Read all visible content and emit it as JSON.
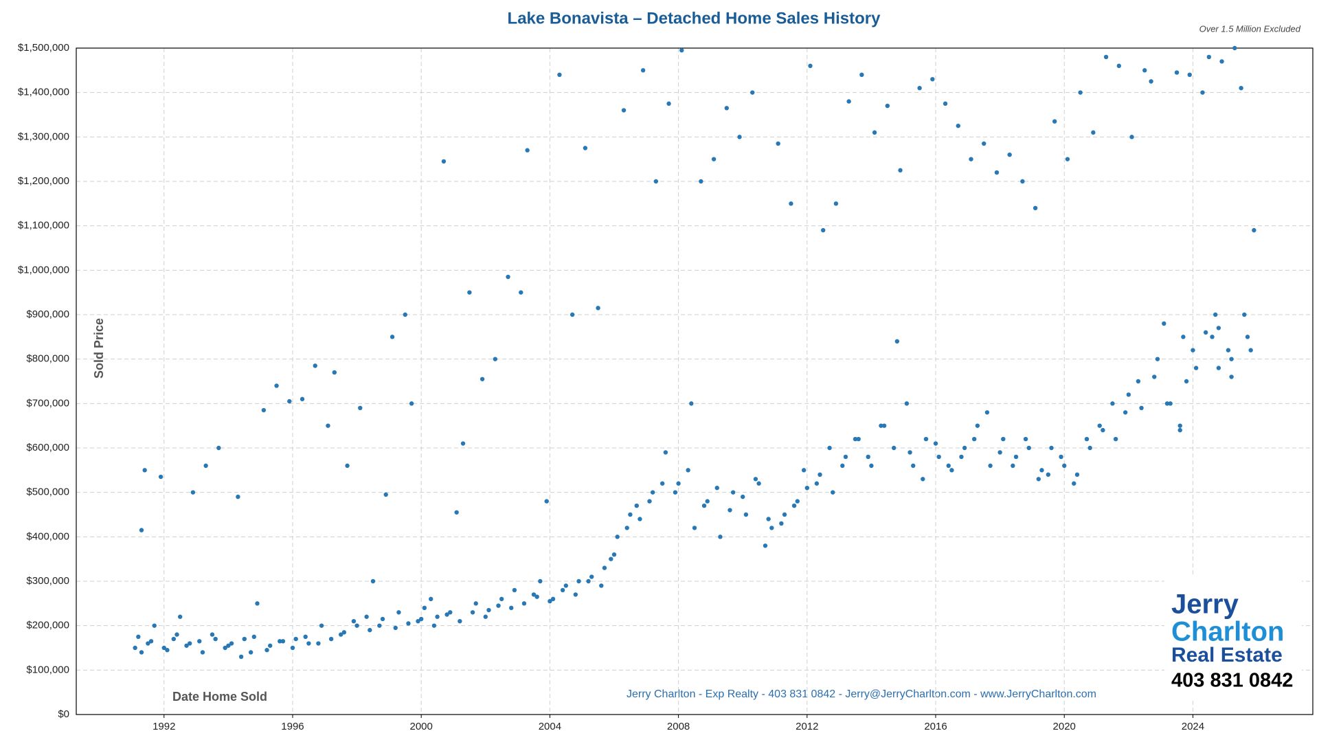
{
  "chart_data": {
    "type": "scatter",
    "title": "Lake Bonavista – Detached Home Sales History",
    "note": "Over 1.5 Million Excluded",
    "y_label": "Sold Price",
    "x_label": "Date Home Sold",
    "footer": "Jerry Charlton - Exp Realty - 403 831 0842 - Jerry@JerryCharlton.com - www.JerryCharlton.com",
    "logo": {
      "line1": "Jerry",
      "line2": "Charlton",
      "line3": "Real Estate",
      "phone": "403 831 0842"
    },
    "color": "#2878b5",
    "grid": true,
    "xlim": [
      1989.27,
      2027.73
    ],
    "xticks": [
      1992,
      1996,
      2000,
      2004,
      2008,
      2012,
      2016,
      2020,
      2024
    ],
    "ylim": [
      0,
      1500000
    ],
    "yticks": [
      {
        "value": 0,
        "label": "$0"
      },
      {
        "value": 100000,
        "label": "$100,000"
      },
      {
        "value": 200000,
        "label": "$200,000"
      },
      {
        "value": 300000,
        "label": "$300,000"
      },
      {
        "value": 400000,
        "label": "$400,000"
      },
      {
        "value": 500000,
        "label": "$500,000"
      },
      {
        "value": 600000,
        "label": "$600,000"
      },
      {
        "value": 700000,
        "label": "$700,000"
      },
      {
        "value": 800000,
        "label": "$800,000"
      },
      {
        "value": 900000,
        "label": "$900,000"
      },
      {
        "value": 1000000,
        "label": "$1,000,000"
      },
      {
        "value": 1100000,
        "label": "$1,100,000"
      },
      {
        "value": 1200000,
        "label": "$1,200,000"
      },
      {
        "value": 1300000,
        "label": "$1,300,000"
      },
      {
        "value": 1400000,
        "label": "$1,400,000"
      },
      {
        "value": 1500000,
        "label": "$1,500,000"
      }
    ],
    "x": [
      1991.1,
      1991.2,
      1991.3,
      1991.4,
      1991.5,
      1991.7,
      1991.9,
      1992.1,
      1992.3,
      1992.5,
      1992.7,
      1992.9,
      1993.1,
      1993.3,
      1993.5,
      1993.7,
      1993.9,
      1994.1,
      1994.3,
      1994.5,
      1994.7,
      1994.9,
      1995.1,
      1995.3,
      1995.5,
      1995.7,
      1995.9,
      1996.1,
      1996.3,
      1996.5,
      1996.7,
      1996.9,
      1997.1,
      1997.3,
      1997.5,
      1997.7,
      1997.9,
      1998.1,
      1998.3,
      1998.5,
      1998.7,
      1998.9,
      1999.1,
      1999.3,
      1999.5,
      1999.7,
      1999.9,
      2000.1,
      2000.3,
      2000.5,
      2000.7,
      2000.9,
      2001.1,
      2001.3,
      2001.5,
      2001.7,
      2001.9,
      2002.1,
      2002.3,
      2002.5,
      2002.7,
      2002.9,
      2003.1,
      2003.3,
      2003.5,
      2003.7,
      2003.9,
      2004.1,
      2004.3,
      2004.5,
      2004.7,
      2004.9,
      2005.1,
      2005.3,
      2005.5,
      2005.7,
      2005.9,
      2006.1,
      2006.3,
      2006.5,
      2006.7,
      2006.9,
      2007.1,
      2007.3,
      2007.5,
      2007.7,
      2007.9,
      2008.1,
      2008.3,
      2008.5,
      2008.7,
      2008.9,
      2009.1,
      2009.3,
      2009.5,
      2009.7,
      2009.9,
      2010.1,
      2010.3,
      2010.5,
      2010.7,
      2010.9,
      2011.1,
      2011.3,
      2011.5,
      2011.7,
      2011.9,
      2012.1,
      2012.3,
      2012.5,
      2012.7,
      2012.9,
      2013.1,
      2013.3,
      2013.5,
      2013.7,
      2013.9,
      2014.1,
      2014.3,
      2014.5,
      2014.7,
      2014.9,
      2015.1,
      2015.3,
      2015.5,
      2015.7,
      2015.9,
      2016.1,
      2016.3,
      2016.5,
      2016.7,
      2016.9,
      2017.1,
      2017.3,
      2017.5,
      2017.7,
      2017.9,
      2018.1,
      2018.3,
      2018.5,
      2018.7,
      2018.9,
      2019.1,
      2019.3,
      2019.5,
      2019.7,
      2019.9,
      2020.1,
      2020.3,
      2020.5,
      2020.7,
      2020.9,
      2021.1,
      2021.3,
      2021.5,
      2021.7,
      2021.9,
      2022.1,
      2022.3,
      2022.5,
      2022.7,
      2022.9,
      2023.1,
      2023.3,
      2023.5,
      2023.7,
      2023.9,
      2024.1,
      2024.3,
      2024.5,
      2024.7,
      2024.9,
      2025.1,
      2025.3,
      2025.5,
      2025.7,
      2025.9,
      2025.2,
      2024.8,
      2023.6,
      1991.3,
      1991.6,
      1992.0,
      1992.4,
      1992.8,
      1993.2,
      1993.6,
      1994.0,
      1994.4,
      1994.8,
      1995.2,
      1995.6,
      1996.0,
      1996.4,
      1996.8,
      1997.2,
      1997.6,
      1998.0,
      1998.4,
      1998.8,
      1999.2,
      1999.6,
      2000.0,
      2000.4,
      2000.8,
      2001.2,
      2001.6,
      2002.0,
      2002.4,
      2002.8,
      2003.2,
      2003.6,
      2004.0,
      2004.4,
      2004.8,
      2005.2,
      2005.6,
      2006.0,
      2006.4,
      2006.8,
      2007.2,
      2007.6,
      2008.0,
      2008.4,
      2008.8,
      2009.2,
      2009.6,
      2010.0,
      2010.4,
      2010.8,
      2011.2,
      2011.6,
      2012.0,
      2012.4,
      2012.8,
      2013.2,
      2013.6,
      2014.0,
      2014.4,
      2014.8,
      2015.2,
      2015.6,
      2016.0,
      2016.4,
      2016.8,
      2017.2,
      2017.6,
      2018.0,
      2018.4,
      2018.8,
      2019.2,
      2019.6,
      2020.0,
      2020.4,
      2020.8,
      2021.2,
      2021.6,
      2022.0,
      2022.4,
      2022.8,
      2023.2,
      2023.6,
      2024.0,
      2024.4,
      2024.8,
      2025.2,
      2025.6,
      2025.8,
      2023.8,
      2024.6
    ],
    "values": [
      150000,
      175000,
      415000,
      550000,
      160000,
      200000,
      535000,
      145000,
      170000,
      220000,
      155000,
      500000,
      165000,
      560000,
      180000,
      600000,
      150000,
      160000,
      490000,
      170000,
      140000,
      250000,
      685000,
      155000,
      740000,
      165000,
      705000,
      170000,
      710000,
      160000,
      785000,
      200000,
      650000,
      770000,
      180000,
      560000,
      210000,
      690000,
      220000,
      300000,
      200000,
      495000,
      850000,
      230000,
      900000,
      700000,
      210000,
      240000,
      260000,
      220000,
      1245000,
      230000,
      455000,
      610000,
      950000,
      250000,
      755000,
      235000,
      800000,
      260000,
      985000,
      280000,
      950000,
      1270000,
      270000,
      300000,
      480000,
      260000,
      1440000,
      290000,
      900000,
      300000,
      1275000,
      310000,
      915000,
      330000,
      350000,
      400000,
      1360000,
      450000,
      470000,
      1450000,
      480000,
      1200000,
      520000,
      1375000,
      500000,
      1495000,
      550000,
      420000,
      1200000,
      480000,
      1250000,
      400000,
      1365000,
      500000,
      1300000,
      450000,
      1400000,
      520000,
      380000,
      420000,
      1285000,
      450000,
      1150000,
      480000,
      550000,
      1460000,
      520000,
      1090000,
      600000,
      1150000,
      560000,
      1380000,
      620000,
      1440000,
      580000,
      1310000,
      650000,
      1370000,
      600000,
      1225000,
      700000,
      560000,
      1410000,
      620000,
      1430000,
      580000,
      1375000,
      550000,
      1325000,
      600000,
      1250000,
      650000,
      1285000,
      560000,
      1220000,
      620000,
      1260000,
      580000,
      1200000,
      600000,
      1140000,
      550000,
      540000,
      1335000,
      580000,
      1250000,
      520000,
      1400000,
      620000,
      1310000,
      650000,
      1480000,
      700000,
      1460000,
      680000,
      1300000,
      750000,
      1450000,
      1425000,
      800000,
      880000,
      700000,
      1445000,
      850000,
      1440000,
      780000,
      1400000,
      1480000,
      900000,
      1470000,
      820000,
      1500000,
      1410000,
      850000,
      1090000,
      760000,
      870000,
      650000,
      140000,
      165000,
      150000,
      180000,
      160000,
      140000,
      170000,
      155000,
      130000,
      175000,
      145000,
      165000,
      150000,
      175000,
      160000,
      170000,
      185000,
      200000,
      190000,
      215000,
      195000,
      205000,
      215000,
      200000,
      225000,
      210000,
      230000,
      220000,
      245000,
      240000,
      250000,
      265000,
      255000,
      280000,
      270000,
      300000,
      290000,
      360000,
      420000,
      440000,
      500000,
      590000,
      520000,
      700000,
      470000,
      510000,
      460000,
      490000,
      530000,
      440000,
      430000,
      470000,
      510000,
      540000,
      500000,
      580000,
      620000,
      560000,
      650000,
      840000,
      590000,
      530000,
      610000,
      560000,
      580000,
      620000,
      680000,
      590000,
      560000,
      620000,
      530000,
      600000,
      560000,
      540000,
      600000,
      640000,
      620000,
      720000,
      690000,
      760000,
      700000,
      640000,
      820000,
      860000,
      780000,
      800000,
      900000,
      820000,
      750000,
      850000
    ]
  }
}
